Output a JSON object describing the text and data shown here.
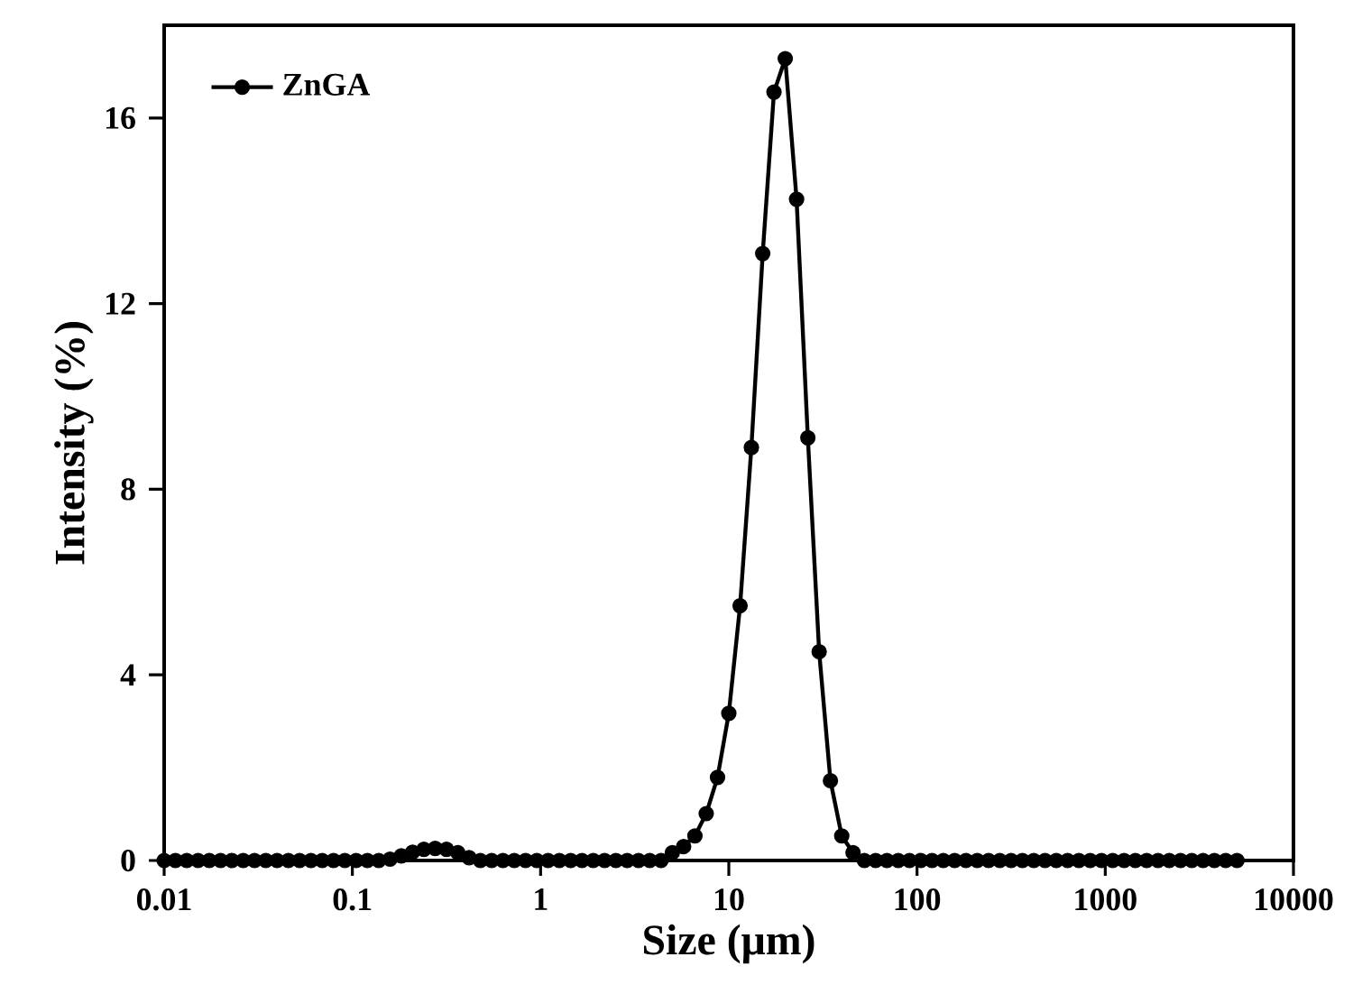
{
  "chart_data": {
    "type": "line",
    "xlabel": "Size (μm)",
    "ylabel": "Intensity (%)",
    "log": "x",
    "xlim": [
      0.01,
      10000
    ],
    "ylim": [
      0,
      18
    ],
    "xticks": [
      0.01,
      0.1,
      1,
      10,
      100,
      1000,
      10000
    ],
    "yticks": [
      0,
      4,
      8,
      12,
      16
    ],
    "grid": false,
    "legend": "top left",
    "marker": "circle",
    "line_style": "solid",
    "series": [
      {
        "name": "ZnGA",
        "color": "#000000",
        "x": [
          0.01,
          0.01148,
          0.01318,
          0.01514,
          0.01738,
          0.01995,
          0.02291,
          0.0263,
          0.0302,
          0.03467,
          0.03981,
          0.04571,
          0.05248,
          0.06026,
          0.06918,
          0.07943,
          0.0912,
          0.1047,
          0.1202,
          0.138,
          0.1585,
          0.182,
          0.2089,
          0.2399,
          0.2754,
          0.3162,
          0.3631,
          0.4169,
          0.4786,
          0.5495,
          0.631,
          0.7244,
          0.8318,
          0.955,
          1.096,
          1.259,
          1.445,
          1.66,
          1.905,
          2.188,
          2.512,
          2.884,
          3.311,
          3.802,
          4.365,
          5.012,
          5.754,
          6.607,
          7.586,
          8.71,
          10,
          11.48,
          13.18,
          15.14,
          17.38,
          19.95,
          22.91,
          26.3,
          30.2,
          34.67,
          39.81,
          45.71,
          52.48,
          60.26,
          69.18,
          79.43,
          91.2,
          104.7,
          120.2,
          138,
          158.5,
          182,
          208.9,
          239.9,
          275.4,
          316.2,
          363.1,
          416.9,
          478.6,
          549.5,
          631,
          724.4,
          831.8,
          955,
          1096,
          1259,
          1445,
          1660,
          1905,
          2188,
          2512,
          2884,
          3311,
          3802,
          4365,
          5012
        ],
        "values": [
          0,
          0,
          0,
          0,
          0,
          0,
          0,
          0,
          0,
          0,
          0,
          0,
          0,
          0,
          0,
          0,
          0,
          0,
          0,
          0,
          0.03,
          0.1,
          0.18,
          0.24,
          0.26,
          0.24,
          0.17,
          0.06,
          0,
          0,
          0,
          0,
          0,
          0,
          0,
          0,
          0,
          0,
          0,
          0,
          0,
          0,
          0,
          0,
          0,
          0.17,
          0.3,
          0.53,
          1.01,
          1.79,
          3.17,
          5.49,
          8.9,
          13.08,
          16.56,
          17.28,
          14.25,
          9.11,
          4.5,
          1.72,
          0.53,
          0.17,
          0,
          0,
          0,
          0,
          0,
          0,
          0,
          0,
          0,
          0,
          0,
          0,
          0,
          0,
          0,
          0,
          0,
          0,
          0,
          0,
          0,
          0,
          0,
          0,
          0,
          0,
          0,
          0,
          0,
          0,
          0,
          0,
          0,
          0
        ]
      }
    ]
  }
}
